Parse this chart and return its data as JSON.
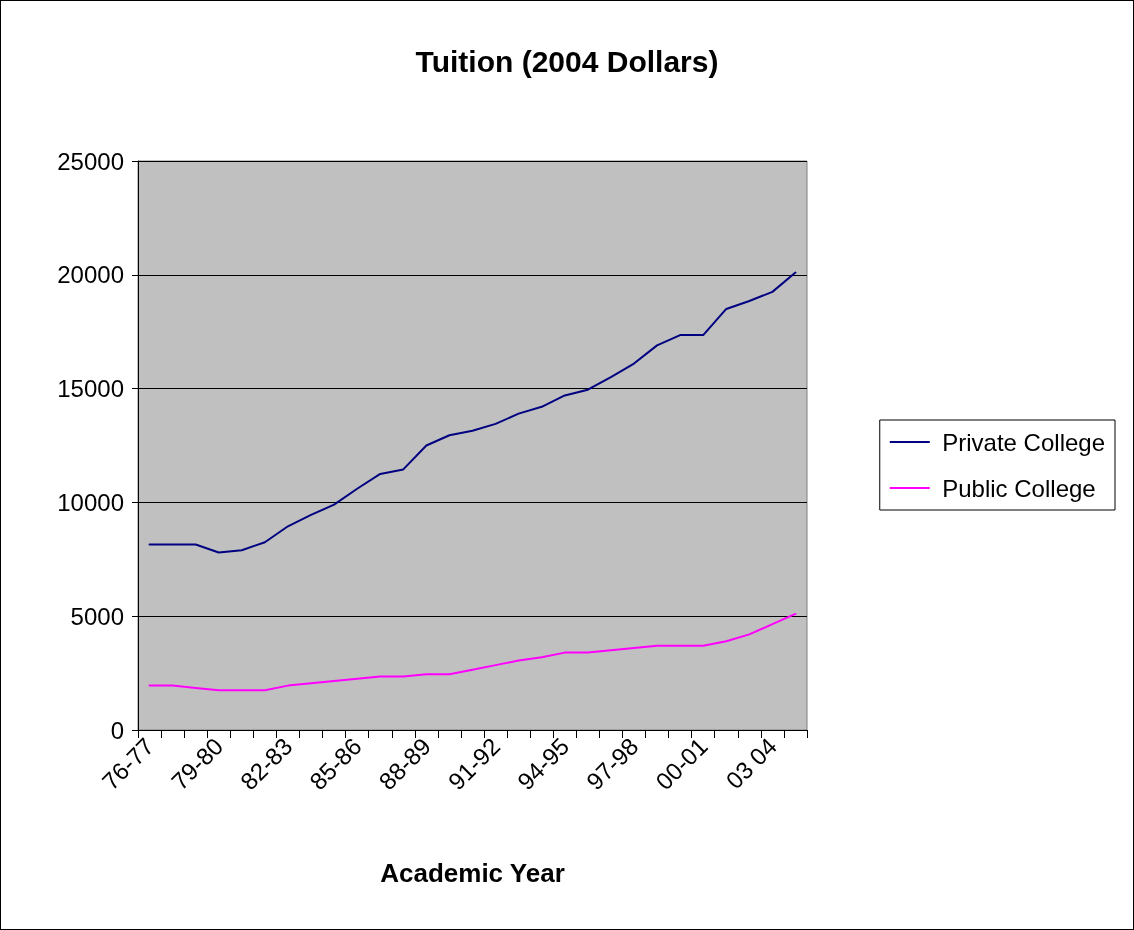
{
  "chart_data": {
    "type": "line",
    "title": "Tuition (2004 Dollars)",
    "xlabel": "Academic Year",
    "categories": [
      "76-77",
      null,
      null,
      "79-80",
      null,
      null,
      "82-83",
      null,
      null,
      "85-86",
      null,
      null,
      "88-89",
      null,
      null,
      "91-92",
      null,
      null,
      "94-95",
      null,
      null,
      "97-98",
      null,
      null,
      "00-01",
      null,
      null,
      "03 04",
      null
    ],
    "series": [
      {
        "name": "Private College",
        "color": "#000080",
        "values": [
          8150,
          8150,
          8150,
          7800,
          7900,
          8250,
          8950,
          9450,
          9900,
          10600,
          11250,
          11450,
          12500,
          12950,
          13150,
          13450,
          13900,
          14200,
          14700,
          14950,
          15500,
          16100,
          16900,
          17350,
          17350,
          18500,
          18850,
          19250,
          20100
        ]
      },
      {
        "name": "Public College",
        "color": "#ff00ff",
        "values": [
          1950,
          1950,
          1850,
          1750,
          1750,
          1750,
          1950,
          2050,
          2150,
          2250,
          2350,
          2350,
          2450,
          2450,
          2650,
          2850,
          3050,
          3200,
          3400,
          3400,
          3500,
          3600,
          3700,
          3700,
          3700,
          3900,
          4200,
          4650,
          5100
        ]
      }
    ],
    "ylim": [
      0,
      25000
    ],
    "yticks": [
      0,
      5000,
      10000,
      15000,
      20000,
      25000
    ],
    "grid": "y",
    "legend": "right",
    "marker": "none",
    "line_style": "solid"
  }
}
